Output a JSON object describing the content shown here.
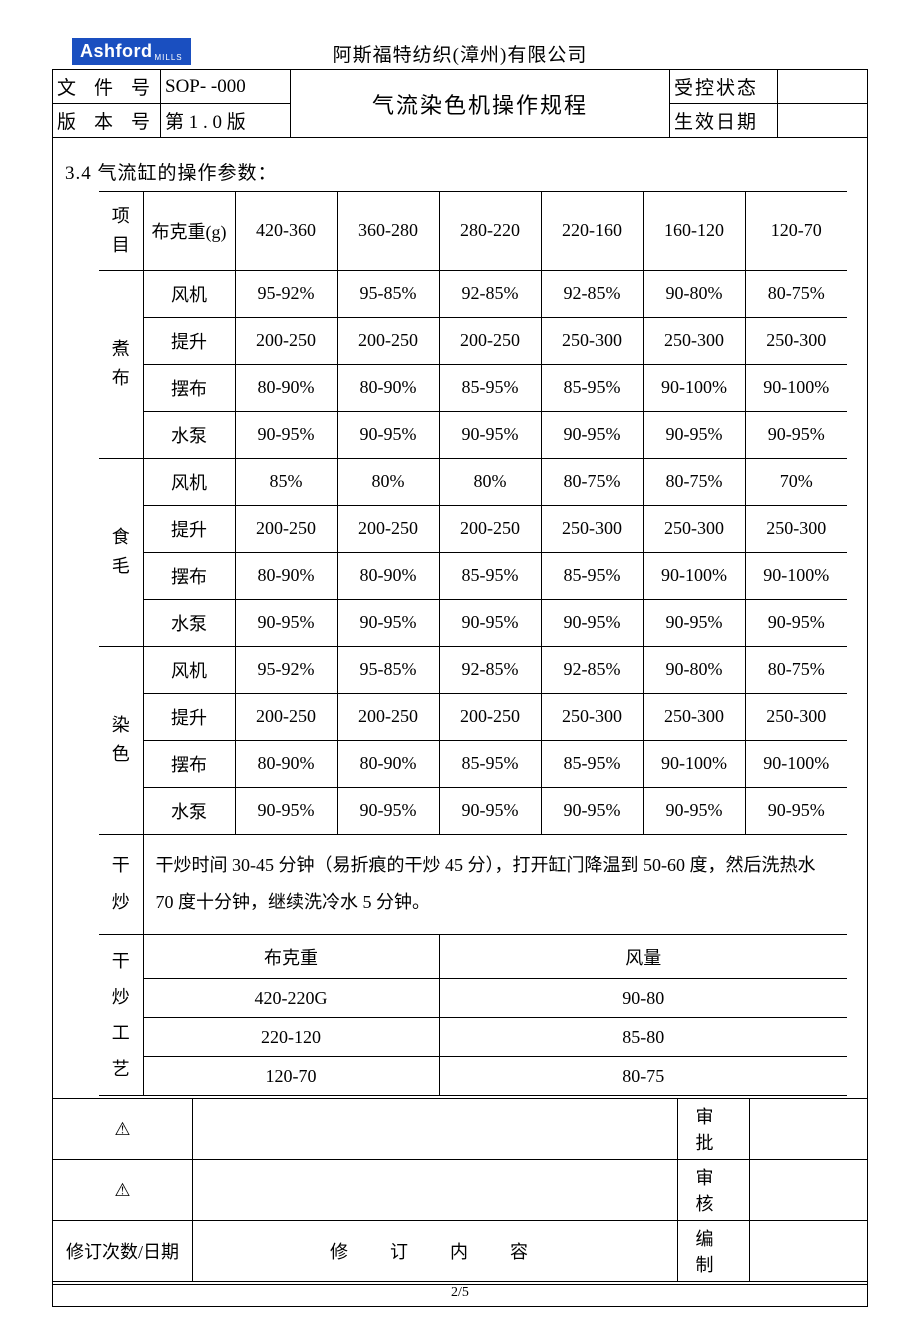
{
  "logo": {
    "main": "Ashford",
    "sub": "MILLS"
  },
  "company": "阿斯福特纺织(漳州)有限公司",
  "header": {
    "doc_no_label": "文 件 号",
    "doc_no_value": "SOP-  -000",
    "ver_label": "版 本 号",
    "ver_value": "第 1 . 0 版",
    "title": "气流染色机操作规程",
    "ctrl_label": "受控状态",
    "ctrl_value": "",
    "eff_label": "生效日期",
    "eff_value": ""
  },
  "section_title": "3.4 气流缸的操作参数：",
  "columns_header": {
    "cat": "项目",
    "param": "布克重(g)",
    "ranges": [
      "420-360",
      "360-280",
      "280-220",
      "220-160",
      "160-120",
      "120-70"
    ]
  },
  "groups": [
    {
      "name": "煮布",
      "rows": [
        {
          "label": "风机",
          "vals": [
            "95-92%",
            "95-85%",
            "92-85%",
            "92-85%",
            "90-80%",
            "80-75%"
          ]
        },
        {
          "label": "提升",
          "vals": [
            "200-250",
            "200-250",
            "200-250",
            "250-300",
            "250-300",
            "250-300"
          ]
        },
        {
          "label": "摆布",
          "vals": [
            "80-90%",
            "80-90%",
            "85-95%",
            "85-95%",
            "90-100%",
            "90-100%"
          ]
        },
        {
          "label": "水泵",
          "vals": [
            "90-95%",
            "90-95%",
            "90-95%",
            "90-95%",
            "90-95%",
            "90-95%"
          ]
        }
      ]
    },
    {
      "name": "食毛",
      "rows": [
        {
          "label": "风机",
          "vals": [
            "85%",
            "80%",
            "80%",
            "80-75%",
            "80-75%",
            "70%"
          ]
        },
        {
          "label": "提升",
          "vals": [
            "200-250",
            "200-250",
            "200-250",
            "250-300",
            "250-300",
            "250-300"
          ]
        },
        {
          "label": "摆布",
          "vals": [
            "80-90%",
            "80-90%",
            "85-95%",
            "85-95%",
            "90-100%",
            "90-100%"
          ]
        },
        {
          "label": "水泵",
          "vals": [
            "90-95%",
            "90-95%",
            "90-95%",
            "90-95%",
            "90-95%",
            "90-95%"
          ]
        }
      ]
    },
    {
      "name": "染色",
      "rows": [
        {
          "label": "风机",
          "vals": [
            "95-92%",
            "95-85%",
            "92-85%",
            "92-85%",
            "90-80%",
            "80-75%"
          ]
        },
        {
          "label": "提升",
          "vals": [
            "200-250",
            "200-250",
            "200-250",
            "250-300",
            "250-300",
            "250-300"
          ]
        },
        {
          "label": "摆布",
          "vals": [
            "80-90%",
            "80-90%",
            "85-95%",
            "85-95%",
            "90-100%",
            "90-100%"
          ]
        },
        {
          "label": "水泵",
          "vals": [
            "90-95%",
            "90-95%",
            "90-95%",
            "90-95%",
            "90-95%",
            "90-95%"
          ]
        }
      ]
    }
  ],
  "drying": {
    "cat": "干炒",
    "text": "干炒时间 30-45 分钟（易折痕的干炒 45 分），打开缸门降温到 50-60 度，然后洗热水 70 度十分钟，继续洗冷水 5 分钟。"
  },
  "dry_tech": {
    "cat": "干炒工艺",
    "header": [
      "布克重",
      "风量"
    ],
    "rows": [
      [
        "420-220G",
        "90-80"
      ],
      [
        "220-120",
        "85-80"
      ],
      [
        "120-70",
        "80-75"
      ]
    ]
  },
  "footer": {
    "r1_left": "　",
    "r1_rlabel": "审批",
    "r2_left": "　",
    "r2_rlabel": "审核",
    "r3_left": "修订次数/日期",
    "r3_mid": "修　订　内　容",
    "r3_rlabel": "编制"
  },
  "page_number": "2/5",
  "style": {
    "logo_bg": "#1a4fc0",
    "border_color": "#000000",
    "base_font_size": 18
  }
}
